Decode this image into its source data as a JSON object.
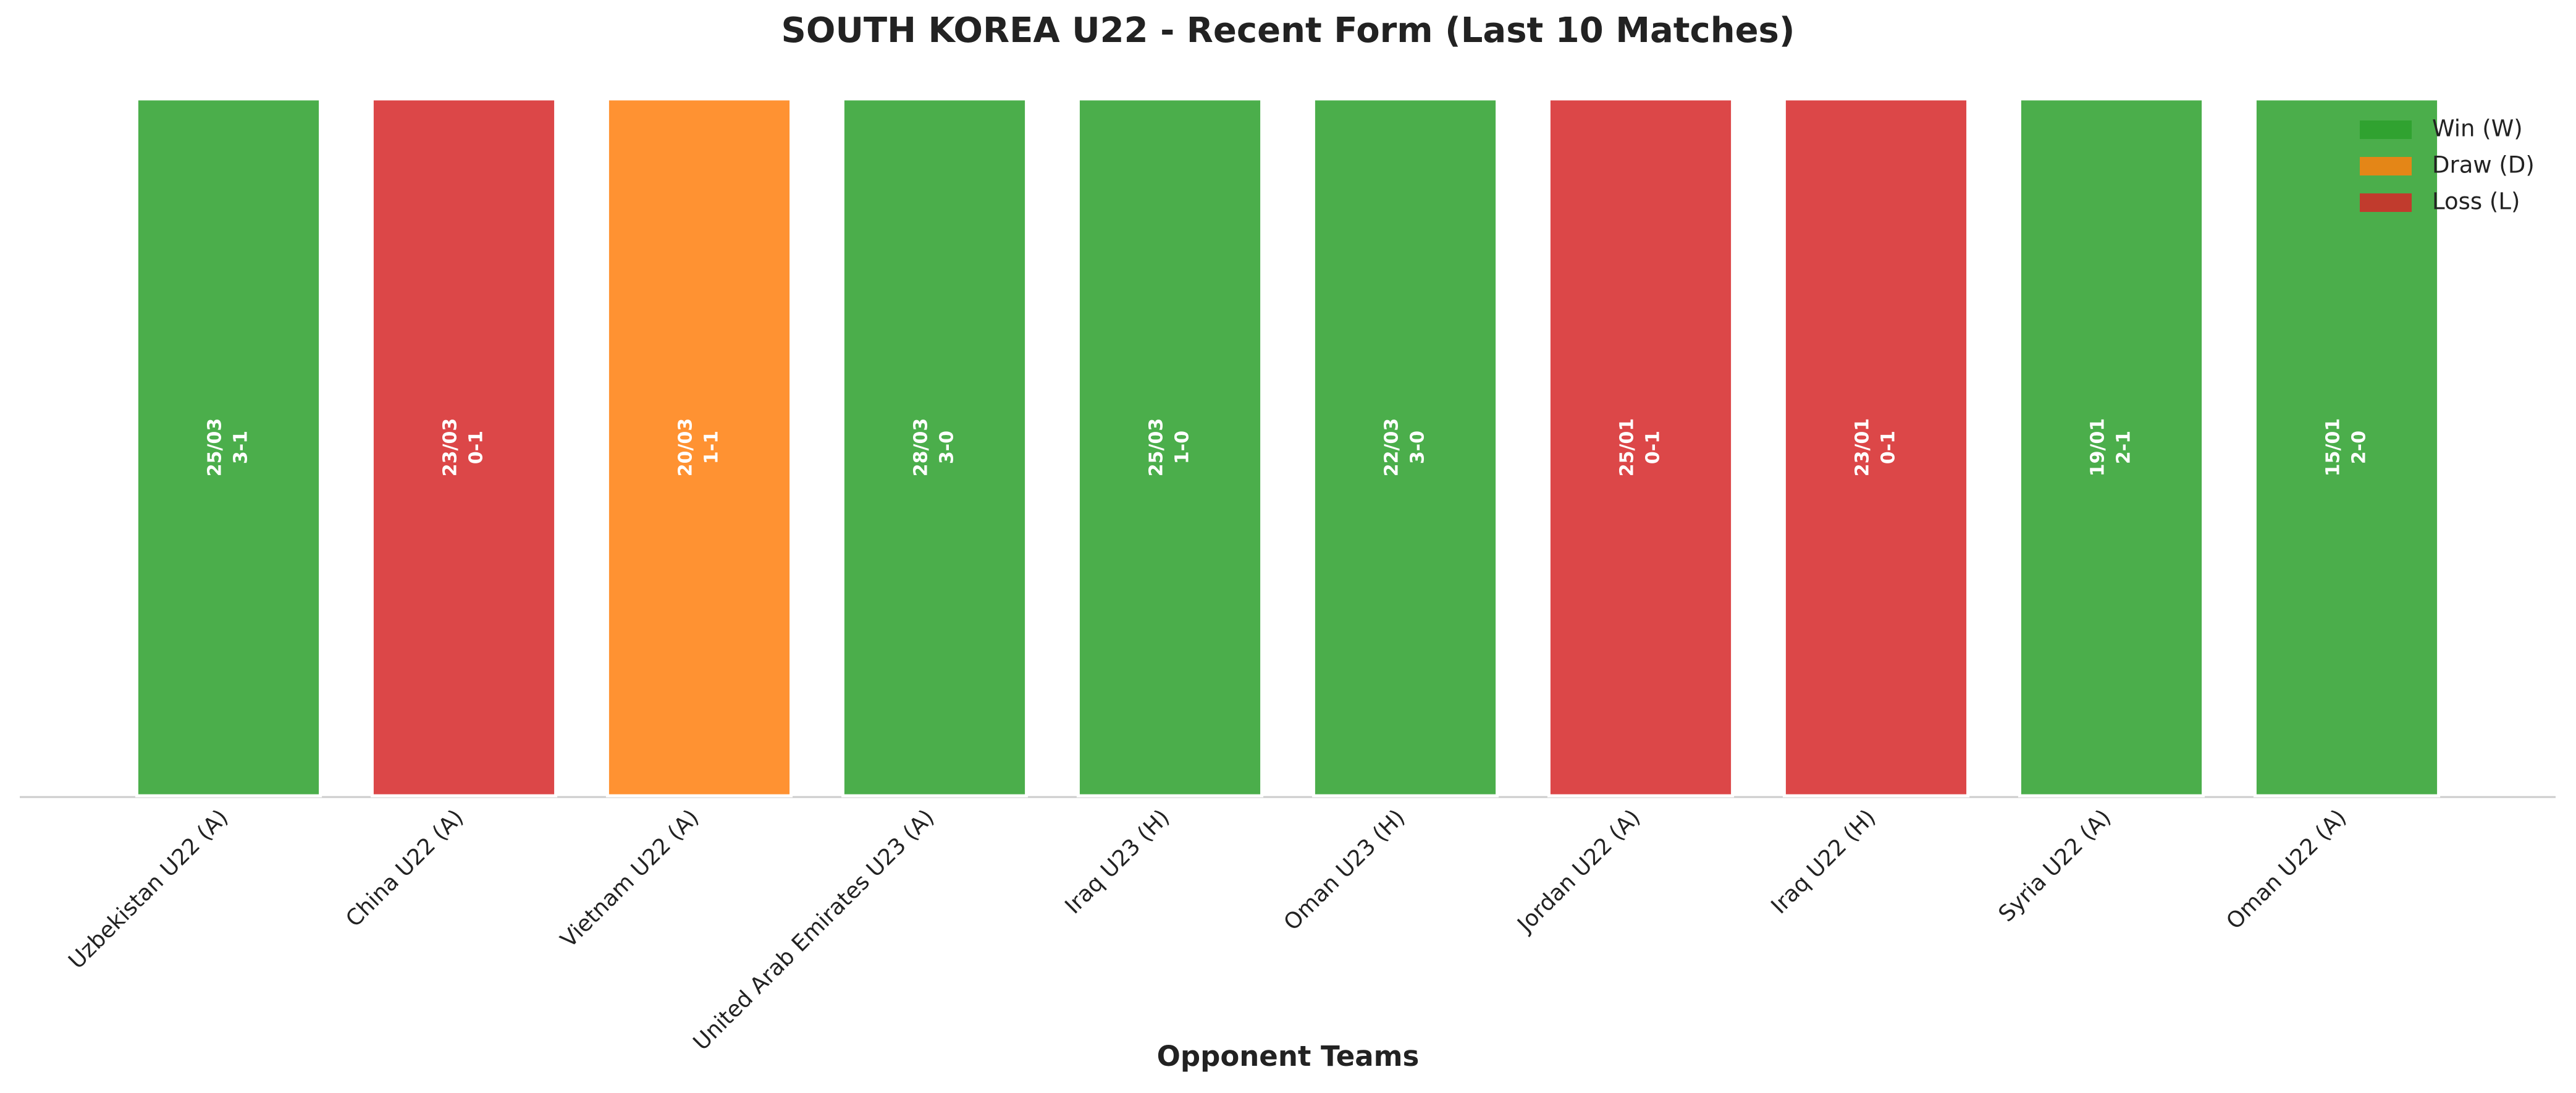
{
  "chart_data": {
    "type": "bar",
    "title": "SOUTH KOREA U22 - Recent Form (Last 10 Matches)",
    "x_label": "Opponent Teams",
    "categories": [
      "Uzbekistan U22 (A)",
      "China U22 (A)",
      "Vietnam U22 (A)",
      "United Arab Emirates U23 (A)",
      "Iraq U23 (H)",
      "Oman U23 (H)",
      "Jordan U22 (A)",
      "Iraq U22 (H)",
      "Syria U22 (A)",
      "Oman U22 (A)"
    ],
    "dates": [
      "25/03",
      "23/03",
      "20/03",
      "28/03",
      "25/03",
      "22/03",
      "25/01",
      "23/01",
      "19/01",
      "15/01"
    ],
    "scores": [
      "3-1",
      "0-1",
      "1-1",
      "3-0",
      "1-0",
      "3-0",
      "0-1",
      "0-1",
      "2-1",
      "2-0"
    ],
    "series": [
      {
        "name": "Win (W)",
        "color": "#2ca02c",
        "values": [
          1,
          null,
          null,
          1,
          1,
          1,
          null,
          null,
          1,
          1
        ]
      },
      {
        "name": "Draw (D)",
        "color": "#ff7f0e",
        "values": [
          null,
          null,
          1,
          null,
          null,
          null,
          null,
          null,
          null,
          null
        ]
      },
      {
        "name": "Loss (L)",
        "color": "#d62728",
        "values": [
          null,
          1,
          null,
          null,
          null,
          null,
          1,
          1,
          null,
          null
        ]
      }
    ],
    "ylim": [
      0,
      1
    ],
    "legend": "upper right"
  }
}
